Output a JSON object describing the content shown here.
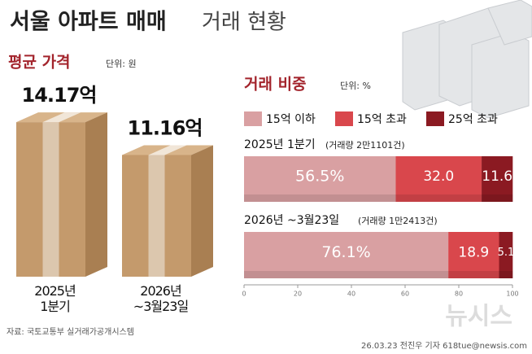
{
  "header": {
    "title_bold": "서울 아파트 매매",
    "title_light": "거래 현황"
  },
  "chart_data": [
    {
      "type": "box",
      "title": "평균 가격",
      "unit": "단위: 원",
      "categories": [
        "2025년\n1분기",
        "2026년\n~3월23일"
      ],
      "values": [
        14.17,
        11.16
      ],
      "value_labels": [
        "14.17억",
        "11.16억"
      ],
      "color": "#c49a6c"
    },
    {
      "type": "stacked-barh",
      "title": "거래 비중",
      "unit": "단위: %",
      "categories": [
        "2025년 1분기",
        "2026년 ~3월23일"
      ],
      "annotations": [
        "(거래량 2만1101건)",
        "(거래량 1만2413건)"
      ],
      "series": [
        {
          "name": "15억 이하",
          "color": "#d9a0a2",
          "values": [
            56.5,
            76.1
          ],
          "value_labels": [
            "56.5%",
            "76.1%"
          ]
        },
        {
          "name": "15억 초과",
          "color": "#d9474c",
          "values": [
            32.0,
            18.9
          ],
          "value_labels": [
            "32.0",
            "18.9"
          ]
        },
        {
          "name": "25억 초과",
          "color": "#8b1a22",
          "values": [
            11.6,
            5.1
          ]
        }
      ],
      "xlim": [
        0,
        100
      ],
      "xticks": [
        0,
        20,
        40,
        60,
        80,
        100
      ]
    }
  ],
  "source": "자료: 국토교통부 실거래가공개시스템",
  "credit": "26.03.23 전진우 기자 618tue@newsis.com",
  "logo": "뉴시스"
}
